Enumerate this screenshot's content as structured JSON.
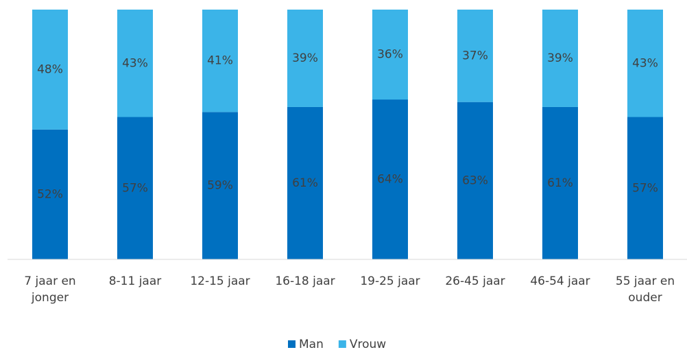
{
  "chart_data": {
    "type": "stacked_bar",
    "categories": [
      "7 jaar en jonger",
      "8-11 jaar",
      "12-15 jaar",
      "16-18 jaar",
      "19-25 jaar",
      "26-45 jaar",
      "46-54 jaar",
      "55 jaar en ouder"
    ],
    "series": [
      {
        "name": "Man",
        "color": "#0070c0",
        "values": [
          52,
          57,
          59,
          61,
          64,
          63,
          61,
          57
        ],
        "value_labels": [
          "52%",
          "57%",
          "59%",
          "61%",
          "64%",
          "63%",
          "61%",
          "57%"
        ]
      },
      {
        "name": "Vrouw",
        "color": "#3bb4e8",
        "values": [
          48,
          43,
          41,
          39,
          36,
          37,
          39,
          43
        ],
        "value_labels": [
          "48%",
          "43%",
          "41%",
          "39%",
          "36%",
          "37%",
          "39%",
          "43%"
        ]
      }
    ],
    "ylim": [
      0,
      100
    ],
    "legend": "bottom"
  }
}
